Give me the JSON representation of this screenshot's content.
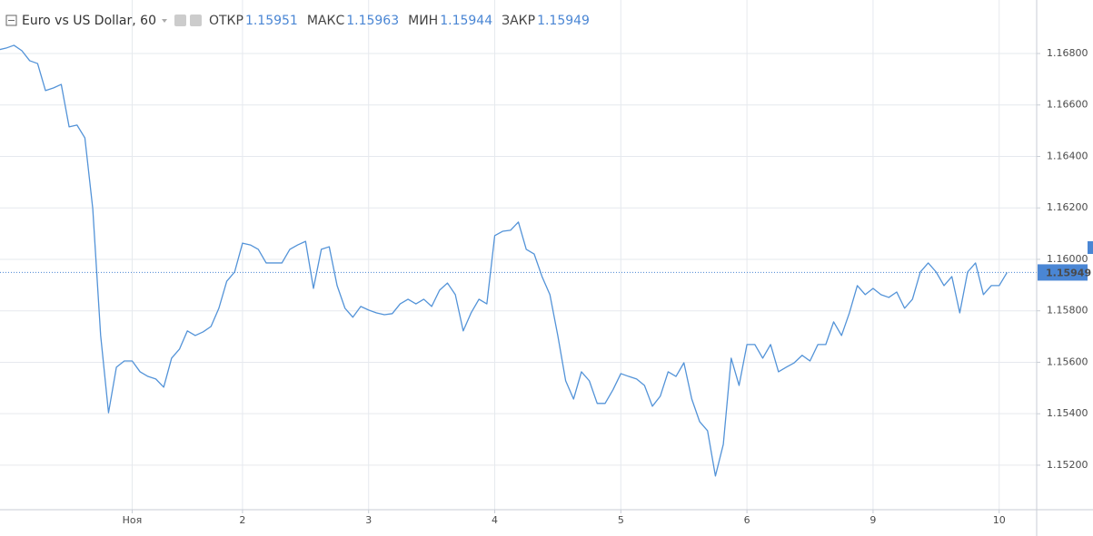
{
  "chart_data": {
    "type": "line",
    "title": "Euro vs US Dollar, 60",
    "ohlc": [
      {
        "label": "ОТКР",
        "value": 1.15951
      },
      {
        "label": "МАКС",
        "value": 1.15963
      },
      {
        "label": "МИН",
        "value": 1.15944
      },
      {
        "label": "ЗАКР",
        "value": 1.15949
      }
    ],
    "last_price": 1.15949,
    "ylim": [
      1.15027,
      1.17008
    ],
    "yticks": [
      {
        "value": 1.152,
        "label": "1.15200"
      },
      {
        "value": 1.154,
        "label": "1.15400"
      },
      {
        "value": 1.156,
        "label": "1.15600"
      },
      {
        "value": 1.158,
        "label": "1.15800"
      },
      {
        "value": 1.16,
        "label": "1.16000"
      },
      {
        "value": 1.162,
        "label": "1.16200"
      },
      {
        "value": 1.164,
        "label": "1.16400"
      },
      {
        "value": 1.166,
        "label": "1.16600"
      },
      {
        "value": 1.168,
        "label": "1.16800"
      }
    ],
    "grid": true,
    "categories": [
      null,
      null,
      null,
      null,
      null,
      null,
      null,
      null,
      null,
      null,
      null,
      null,
      null,
      null,
      null,
      null,
      null,
      "Ноя",
      null,
      null,
      null,
      null,
      null,
      null,
      null,
      null,
      null,
      null,
      null,
      null,
      null,
      "2",
      null,
      null,
      null,
      null,
      null,
      null,
      null,
      null,
      null,
      null,
      null,
      null,
      null,
      null,
      null,
      "3",
      null,
      null,
      null,
      null,
      null,
      null,
      null,
      null,
      null,
      null,
      null,
      null,
      null,
      null,
      null,
      "4",
      null,
      null,
      null,
      null,
      null,
      null,
      null,
      null,
      null,
      null,
      null,
      null,
      null,
      null,
      null,
      "5",
      null,
      null,
      null,
      null,
      null,
      null,
      null,
      null,
      null,
      null,
      null,
      null,
      null,
      null,
      null,
      "6",
      null,
      null,
      null,
      null,
      null,
      null,
      null,
      null,
      null,
      null,
      null,
      null,
      null,
      null,
      null,
      "9",
      null,
      null,
      null,
      null,
      null,
      null,
      null,
      null,
      null,
      null,
      null,
      null,
      null,
      null,
      null,
      "10",
      null
    ],
    "series": [
      {
        "color": "#5393d8",
        "values": [
          1.16814,
          1.16821,
          1.16832,
          1.16811,
          1.16772,
          1.16761,
          1.16656,
          1.16666,
          1.1668,
          1.16515,
          1.16522,
          1.16472,
          1.16197,
          1.15704,
          1.15404,
          1.15581,
          1.15605,
          1.15605,
          1.15563,
          1.15545,
          1.15535,
          1.15503,
          1.15616,
          1.15651,
          1.15722,
          1.15704,
          1.15718,
          1.15739,
          1.1581,
          1.15915,
          1.15951,
          1.16063,
          1.16056,
          1.16039,
          1.15986,
          1.15986,
          1.15986,
          1.16039,
          1.16056,
          1.1607,
          1.15887,
          1.16039,
          1.16049,
          1.15898,
          1.1581,
          1.15775,
          1.15817,
          1.15803,
          1.15792,
          1.15785,
          1.15789,
          1.15827,
          1.15845,
          1.15827,
          1.15845,
          1.15817,
          1.1588,
          1.15908,
          1.15863,
          1.15722,
          1.15792,
          1.15845,
          1.15827,
          1.16092,
          1.16109,
          1.16113,
          1.16145,
          1.16039,
          1.16021,
          1.15933,
          1.15863,
          1.15704,
          1.15528,
          1.15457,
          1.15563,
          1.15528,
          1.1544,
          1.1544,
          1.15493,
          1.15556,
          1.15545,
          1.15535,
          1.1551,
          1.15429,
          1.15468,
          1.15563,
          1.15545,
          1.15598,
          1.15457,
          1.15369,
          1.15334,
          1.15158,
          1.15281,
          1.15616,
          1.1551,
          1.15669,
          1.15669,
          1.15616,
          1.15669,
          1.15563,
          1.15581,
          1.15598,
          1.15627,
          1.15605,
          1.15669,
          1.15669,
          1.15757,
          1.15704,
          1.15792,
          1.15898,
          1.15863,
          1.15887,
          1.15863,
          1.15852,
          1.15873,
          1.1581,
          1.15845,
          1.15951,
          1.15986,
          1.15951,
          1.15898,
          1.15933,
          1.15792,
          1.15951,
          1.15986,
          1.15863,
          1.15898,
          1.15898,
          1.15949
        ]
      }
    ]
  }
}
